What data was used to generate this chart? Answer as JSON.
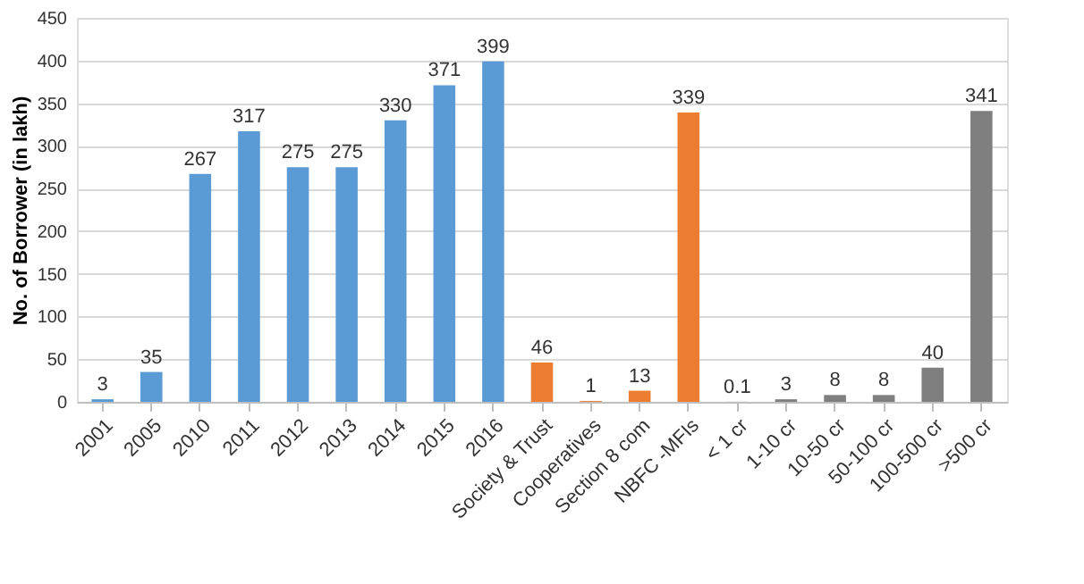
{
  "chart_data": {
    "type": "bar",
    "ylabel": "No. of Borrower (in lakh)",
    "categories": [
      "2001",
      "2005",
      "2010",
      "2011",
      "2012",
      "2013",
      "2014",
      "2015",
      "2016",
      "Society & Trust",
      "Cooperatives",
      "Section 8 com",
      "NBFC -MFIs",
      "< 1 cr",
      "1-10 cr",
      "10-50 cr",
      "50-100 cr",
      "100-500 cr",
      ">500 cr"
    ],
    "values": [
      3,
      35,
      267,
      317,
      275,
      275,
      330,
      371,
      399,
      46,
      1,
      13,
      339,
      0.1,
      3,
      8,
      8,
      40,
      341
    ],
    "colors": [
      "#5b9bd5",
      "#5b9bd5",
      "#5b9bd5",
      "#5b9bd5",
      "#5b9bd5",
      "#5b9bd5",
      "#5b9bd5",
      "#5b9bd5",
      "#5b9bd5",
      "#ed7d31",
      "#ed7d31",
      "#ed7d31",
      "#ed7d31",
      "#7f7f7f",
      "#7f7f7f",
      "#7f7f7f",
      "#7f7f7f",
      "#7f7f7f",
      "#7f7f7f"
    ],
    "ylim": [
      0,
      450
    ],
    "yticks": [
      0,
      50,
      100,
      150,
      200,
      250,
      300,
      350,
      400,
      450
    ],
    "grid": "y",
    "data_labels": true
  }
}
